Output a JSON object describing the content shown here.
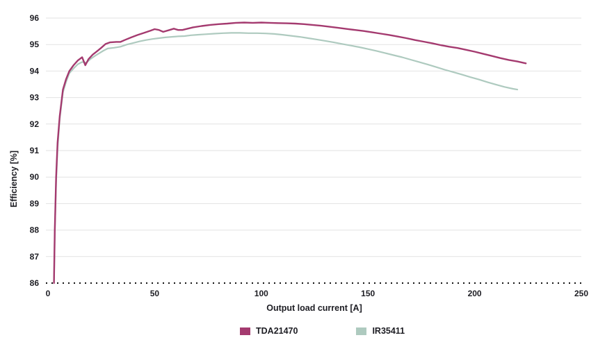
{
  "chart_data": {
    "type": "line",
    "title": "",
    "xlabel": "Output load current [A]",
    "ylabel": "Efficiency [%]",
    "xlim": [
      0,
      250
    ],
    "ylim": [
      86,
      96
    ],
    "xticks": [
      0,
      50,
      100,
      150,
      200,
      250
    ],
    "yticks": [
      86,
      87,
      88,
      89,
      90,
      91,
      92,
      93,
      94,
      95,
      96
    ],
    "grid": "horizontal-only",
    "legend_position": "bottom-center",
    "colors": {
      "grid": "#e2e2e2",
      "axis_dotted": "#111111",
      "text": "#1d1d23"
    },
    "series": [
      {
        "name": "IR35411",
        "color": "#aecabf",
        "stroke_width": 2.2,
        "points": [
          [
            2.8,
            86.0
          ],
          [
            3.2,
            87.9
          ],
          [
            3.8,
            89.8
          ],
          [
            4.5,
            91.1
          ],
          [
            5.5,
            92.2
          ],
          [
            7,
            93.2
          ],
          [
            8.5,
            93.6
          ],
          [
            10,
            93.92
          ],
          [
            12,
            94.1
          ],
          [
            14,
            94.26
          ],
          [
            16,
            94.34
          ],
          [
            18,
            94.32
          ],
          [
            20,
            94.46
          ],
          [
            22,
            94.57
          ],
          [
            24,
            94.67
          ],
          [
            26,
            94.77
          ],
          [
            28,
            94.85
          ],
          [
            31,
            94.88
          ],
          [
            34,
            94.92
          ],
          [
            37,
            95.0
          ],
          [
            40,
            95.06
          ],
          [
            43,
            95.12
          ],
          [
            46,
            95.17
          ],
          [
            49,
            95.21
          ],
          [
            52,
            95.24
          ],
          [
            55,
            95.27
          ],
          [
            58,
            95.29
          ],
          [
            61,
            95.31
          ],
          [
            64,
            95.32
          ],
          [
            67,
            95.35
          ],
          [
            70,
            95.37
          ],
          [
            74,
            95.39
          ],
          [
            78,
            95.41
          ],
          [
            82,
            95.43
          ],
          [
            86,
            95.44
          ],
          [
            90,
            95.44
          ],
          [
            94,
            95.43
          ],
          [
            98,
            95.43
          ],
          [
            102,
            95.42
          ],
          [
            106,
            95.4
          ],
          [
            110,
            95.37
          ],
          [
            114,
            95.33
          ],
          [
            118,
            95.29
          ],
          [
            122,
            95.24
          ],
          [
            126,
            95.19
          ],
          [
            130,
            95.14
          ],
          [
            134,
            95.08
          ],
          [
            138,
            95.02
          ],
          [
            142,
            94.96
          ],
          [
            146,
            94.9
          ],
          [
            150,
            94.83
          ],
          [
            154,
            94.76
          ],
          [
            158,
            94.68
          ],
          [
            162,
            94.6
          ],
          [
            166,
            94.52
          ],
          [
            170,
            94.43
          ],
          [
            174,
            94.34
          ],
          [
            178,
            94.25
          ],
          [
            182,
            94.15
          ],
          [
            186,
            94.05
          ],
          [
            190,
            93.96
          ],
          [
            194,
            93.87
          ],
          [
            198,
            93.77
          ],
          [
            202,
            93.68
          ],
          [
            206,
            93.58
          ],
          [
            210,
            93.49
          ],
          [
            214,
            93.4
          ],
          [
            218,
            93.33
          ],
          [
            220,
            93.3
          ]
        ]
      },
      {
        "name": "TDA21470",
        "color": "#a43a6f",
        "stroke_width": 2.4,
        "points": [
          [
            2.8,
            86.0
          ],
          [
            3.2,
            88.0
          ],
          [
            3.8,
            90.0
          ],
          [
            4.5,
            91.3
          ],
          [
            5.5,
            92.3
          ],
          [
            7,
            93.3
          ],
          [
            8.5,
            93.7
          ],
          [
            10,
            94.0
          ],
          [
            12,
            94.22
          ],
          [
            14,
            94.4
          ],
          [
            16,
            94.52
          ],
          [
            17.5,
            94.22
          ],
          [
            19,
            94.45
          ],
          [
            21,
            94.62
          ],
          [
            23,
            94.75
          ],
          [
            25,
            94.88
          ],
          [
            27,
            95.02
          ],
          [
            29,
            95.08
          ],
          [
            32,
            95.1
          ],
          [
            34,
            95.1
          ],
          [
            36,
            95.17
          ],
          [
            39,
            95.27
          ],
          [
            42,
            95.36
          ],
          [
            45,
            95.44
          ],
          [
            48,
            95.52
          ],
          [
            50,
            95.58
          ],
          [
            52,
            95.55
          ],
          [
            54,
            95.48
          ],
          [
            57,
            95.55
          ],
          [
            59,
            95.6
          ],
          [
            61,
            95.55
          ],
          [
            63,
            95.55
          ],
          [
            65,
            95.59
          ],
          [
            68,
            95.65
          ],
          [
            72,
            95.7
          ],
          [
            76,
            95.74
          ],
          [
            80,
            95.77
          ],
          [
            84,
            95.79
          ],
          [
            88,
            95.82
          ],
          [
            92,
            95.83
          ],
          [
            96,
            95.82
          ],
          [
            100,
            95.83
          ],
          [
            104,
            95.82
          ],
          [
            108,
            95.81
          ],
          [
            112,
            95.8
          ],
          [
            116,
            95.79
          ],
          [
            120,
            95.77
          ],
          [
            124,
            95.74
          ],
          [
            128,
            95.71
          ],
          [
            132,
            95.67
          ],
          [
            136,
            95.63
          ],
          [
            140,
            95.59
          ],
          [
            144,
            95.55
          ],
          [
            148,
            95.51
          ],
          [
            152,
            95.46
          ],
          [
            156,
            95.41
          ],
          [
            160,
            95.36
          ],
          [
            164,
            95.3
          ],
          [
            168,
            95.24
          ],
          [
            172,
            95.17
          ],
          [
            176,
            95.11
          ],
          [
            180,
            95.05
          ],
          [
            184,
            94.98
          ],
          [
            188,
            94.92
          ],
          [
            192,
            94.87
          ],
          [
            196,
            94.8
          ],
          [
            200,
            94.73
          ],
          [
            204,
            94.65
          ],
          [
            208,
            94.57
          ],
          [
            212,
            94.49
          ],
          [
            216,
            94.42
          ],
          [
            220,
            94.36
          ],
          [
            224,
            94.29
          ]
        ]
      }
    ]
  },
  "legend": {
    "entries": [
      {
        "label": "TDA21470"
      },
      {
        "label": "IR35411"
      }
    ]
  }
}
